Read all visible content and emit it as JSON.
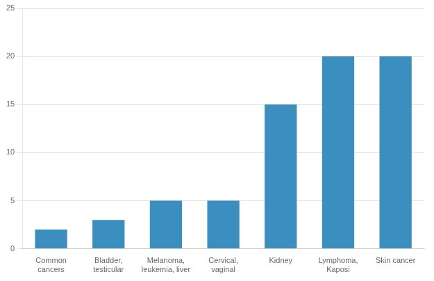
{
  "chart_data": {
    "type": "bar",
    "categories": [
      "Common\ncancers",
      "Bladder,\ntesticular",
      "Melanoma,\nleukemia, liver",
      "Cervical,\nvaginal",
      "Kidney",
      "Lymphoma,\nKaposi",
      "Skin cancer"
    ],
    "values": [
      2,
      3,
      5,
      5,
      15,
      20,
      20
    ],
    "color": "#3a8fbf",
    "ylim": [
      0,
      25
    ],
    "yticks": [
      0,
      5,
      10,
      15,
      20,
      25
    ],
    "grid": true
  }
}
